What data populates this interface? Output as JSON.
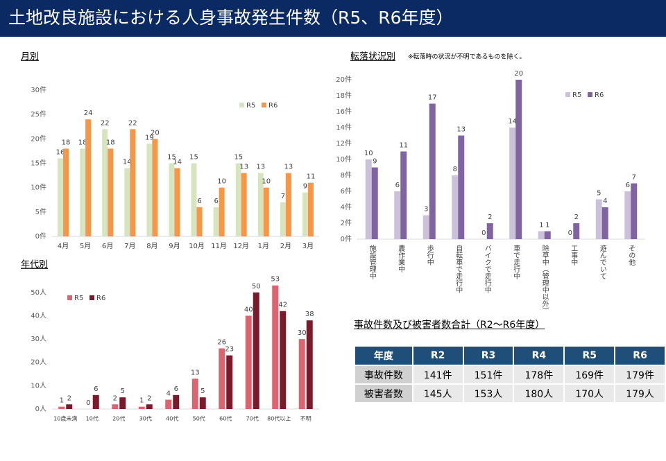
{
  "header": {
    "title": "土地改良施設における人身事故発生件数（R5、R6年度）"
  },
  "chart_data": [
    {
      "type": "bar",
      "title": "月別",
      "categories": [
        "4月",
        "5月",
        "6月",
        "7月",
        "8月",
        "9月",
        "10月",
        "11月",
        "12月",
        "1月",
        "2月",
        "3月"
      ],
      "series": [
        {
          "name": "R5",
          "color": "#d7e4bd",
          "values": [
            16,
            18,
            22,
            14,
            19,
            15,
            15,
            6,
            15,
            13,
            7,
            9
          ]
        },
        {
          "name": "R6",
          "color": "#f79646",
          "values": [
            18,
            24,
            18,
            22,
            20,
            14,
            6,
            10,
            13,
            10,
            13,
            11
          ]
        }
      ],
      "ylim": [
        0,
        30
      ],
      "yticks": [
        {
          "value": 0,
          "label": "0件"
        },
        {
          "value": 5,
          "label": "5件"
        },
        {
          "value": 10,
          "label": "10件"
        },
        {
          "value": 15,
          "label": "15件"
        },
        {
          "value": 20,
          "label": "20件"
        },
        {
          "value": 25,
          "label": "25件"
        },
        {
          "value": 30,
          "label": "30件"
        }
      ],
      "legend": "upper right"
    },
    {
      "type": "bar",
      "title": "転落状況別",
      "subtitle": "※転落時の状況が不明であるものを除く。",
      "categories": [
        "施設管理中",
        "農作業中",
        "歩行中",
        "自転車で走行中",
        "バイクで走行中",
        "車で走行中",
        "除草中（管理中以外）",
        "工事中",
        "遊んでいて",
        "その他"
      ],
      "series": [
        {
          "name": "R5",
          "color": "#ccc1da",
          "values": [
            10,
            6,
            3,
            8,
            0,
            14,
            1,
            0,
            5,
            6
          ]
        },
        {
          "name": "R6",
          "color": "#8064a2",
          "values": [
            9,
            11,
            17,
            13,
            2,
            20,
            1,
            2,
            4,
            7
          ]
        }
      ],
      "ylim": [
        0,
        20
      ],
      "yticks": [
        {
          "value": 0,
          "label": "0件"
        },
        {
          "value": 2,
          "label": "2件"
        },
        {
          "value": 4,
          "label": "4件"
        },
        {
          "value": 6,
          "label": "6件"
        },
        {
          "value": 8,
          "label": "8件"
        },
        {
          "value": 10,
          "label": "10件"
        },
        {
          "value": 12,
          "label": "12件"
        },
        {
          "value": 14,
          "label": "14件"
        },
        {
          "value": 16,
          "label": "16件"
        },
        {
          "value": 18,
          "label": "18件"
        },
        {
          "value": 20,
          "label": "20件"
        }
      ],
      "legend": "upper right"
    },
    {
      "type": "bar",
      "title": "年代別",
      "categories": [
        "10歳未満",
        "10代",
        "20代",
        "30代",
        "40代",
        "50代",
        "60代",
        "70代",
        "80代以上",
        "不明"
      ],
      "series": [
        {
          "name": "R5",
          "color": "#dc6470",
          "values": [
            1,
            0,
            2,
            1,
            4,
            13,
            26,
            40,
            53,
            30
          ]
        },
        {
          "name": "R6",
          "color": "#7a1a2a",
          "values": [
            2,
            6,
            5,
            2,
            6,
            5,
            23,
            50,
            42,
            38
          ]
        }
      ],
      "ylim": [
        0,
        55
      ],
      "yticks": [
        {
          "value": 0,
          "label": "0人"
        },
        {
          "value": 10,
          "label": "10人"
        },
        {
          "value": 20,
          "label": "20人"
        },
        {
          "value": 30,
          "label": "30人"
        },
        {
          "value": 40,
          "label": "40人"
        },
        {
          "value": 50,
          "label": "50人"
        }
      ],
      "legend": "upper left"
    }
  ],
  "table": {
    "title": "事故件数及び被害者数合計（R2～R6年度）",
    "header": [
      "年度",
      "R2",
      "R3",
      "R4",
      "R5",
      "R6"
    ],
    "rows": [
      [
        "事故件数",
        "141件",
        "151件",
        "178件",
        "169件",
        "179件"
      ],
      [
        "被害者数",
        "145人",
        "153人",
        "180人",
        "170人",
        "179人"
      ]
    ]
  }
}
